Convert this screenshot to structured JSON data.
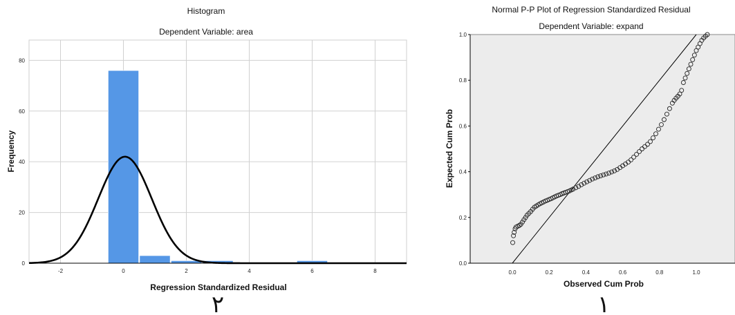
{
  "chart_data": [
    {
      "type": "bar",
      "title": "Histogram",
      "subtitle": "Dependent Variable: area",
      "xlabel": "Regression Standardized Residual",
      "ylabel": "Frequency",
      "xlim": [
        -3,
        9
      ],
      "ylim": [
        0,
        88
      ],
      "xticks": [
        -2,
        0,
        2,
        4,
        6,
        8
      ],
      "yticks": [
        0,
        20,
        40,
        60,
        80
      ],
      "bar_color": "#5597e6",
      "grid": true,
      "bins": [
        {
          "x0": -0.5,
          "x1": 0.5,
          "count": 76
        },
        {
          "x0": 0.5,
          "x1": 1.5,
          "count": 3
        },
        {
          "x0": 1.5,
          "x1": 2.5,
          "count": 1
        },
        {
          "x0": 2.5,
          "x1": 3.5,
          "count": 1
        },
        {
          "x0": 3.5,
          "x1": 4.5,
          "count": 0
        },
        {
          "x0": 4.5,
          "x1": 5.5,
          "count": 0
        },
        {
          "x0": 5.5,
          "x1": 6.5,
          "count": 1
        }
      ],
      "normal_curve": {
        "mean": 0.05,
        "sd": 0.85,
        "peak": 42
      },
      "footer_label": "٢"
    },
    {
      "type": "scatter",
      "title": "Normal P-P Plot of Regression Standardized Residual",
      "subtitle": "Dependent Variable: expand",
      "xlabel": "Observed Cum Prob",
      "ylabel": "Expected Cum Prob",
      "xlim": [
        0,
        1.2
      ],
      "ylim": [
        0,
        1.0
      ],
      "xticks": [
        "0.0",
        "0.2",
        "0.4",
        "0.6",
        "0.8",
        "1.0"
      ],
      "yticks": [
        "0.0",
        "0.2",
        "0.4",
        "0.6",
        "0.8",
        "1.0"
      ],
      "background": "#ececec",
      "reference_line": [
        [
          0,
          0
        ],
        [
          1,
          1
        ]
      ],
      "points": [
        [
          0.002,
          0.09
        ],
        [
          0.006,
          0.12
        ],
        [
          0.01,
          0.135
        ],
        [
          0.015,
          0.15
        ],
        [
          0.02,
          0.158
        ],
        [
          0.03,
          0.162
        ],
        [
          0.038,
          0.165
        ],
        [
          0.046,
          0.17
        ],
        [
          0.055,
          0.18
        ],
        [
          0.063,
          0.19
        ],
        [
          0.072,
          0.2
        ],
        [
          0.08,
          0.21
        ],
        [
          0.09,
          0.218
        ],
        [
          0.1,
          0.226
        ],
        [
          0.11,
          0.236
        ],
        [
          0.12,
          0.245
        ],
        [
          0.13,
          0.25
        ],
        [
          0.14,
          0.255
        ],
        [
          0.15,
          0.26
        ],
        [
          0.16,
          0.264
        ],
        [
          0.17,
          0.268
        ],
        [
          0.18,
          0.272
        ],
        [
          0.19,
          0.275
        ],
        [
          0.2,
          0.279
        ],
        [
          0.21,
          0.282
        ],
        [
          0.22,
          0.286
        ],
        [
          0.23,
          0.29
        ],
        [
          0.24,
          0.294
        ],
        [
          0.25,
          0.297
        ],
        [
          0.26,
          0.3
        ],
        [
          0.27,
          0.304
        ],
        [
          0.28,
          0.307
        ],
        [
          0.29,
          0.31
        ],
        [
          0.3,
          0.313
        ],
        [
          0.31,
          0.316
        ],
        [
          0.32,
          0.32
        ],
        [
          0.33,
          0.324
        ],
        [
          0.345,
          0.33
        ],
        [
          0.36,
          0.336
        ],
        [
          0.375,
          0.343
        ],
        [
          0.39,
          0.35
        ],
        [
          0.405,
          0.356
        ],
        [
          0.42,
          0.362
        ],
        [
          0.435,
          0.368
        ],
        [
          0.45,
          0.373
        ],
        [
          0.465,
          0.378
        ],
        [
          0.48,
          0.382
        ],
        [
          0.495,
          0.386
        ],
        [
          0.51,
          0.39
        ],
        [
          0.525,
          0.394
        ],
        [
          0.54,
          0.399
        ],
        [
          0.555,
          0.404
        ],
        [
          0.57,
          0.41
        ],
        [
          0.585,
          0.418
        ],
        [
          0.6,
          0.426
        ],
        [
          0.615,
          0.434
        ],
        [
          0.63,
          0.442
        ],
        [
          0.645,
          0.452
        ],
        [
          0.66,
          0.464
        ],
        [
          0.675,
          0.476
        ],
        [
          0.69,
          0.488
        ],
        [
          0.705,
          0.5
        ],
        [
          0.72,
          0.51
        ],
        [
          0.735,
          0.52
        ],
        [
          0.75,
          0.532
        ],
        [
          0.765,
          0.548
        ],
        [
          0.78,
          0.566
        ],
        [
          0.795,
          0.586
        ],
        [
          0.81,
          0.606
        ],
        [
          0.825,
          0.628
        ],
        [
          0.84,
          0.652
        ],
        [
          0.855,
          0.676
        ],
        [
          0.87,
          0.7
        ],
        [
          0.88,
          0.712
        ],
        [
          0.89,
          0.722
        ],
        [
          0.9,
          0.73
        ],
        [
          0.91,
          0.74
        ],
        [
          0.92,
          0.756
        ],
        [
          0.93,
          0.79
        ],
        [
          0.94,
          0.81
        ],
        [
          0.95,
          0.83
        ],
        [
          0.96,
          0.85
        ],
        [
          0.97,
          0.87
        ],
        [
          0.98,
          0.89
        ],
        [
          0.99,
          0.91
        ],
        [
          1.0,
          0.93
        ],
        [
          1.01,
          0.945
        ],
        [
          1.02,
          0.96
        ],
        [
          1.03,
          0.975
        ],
        [
          1.04,
          0.985
        ],
        [
          1.05,
          0.993
        ],
        [
          1.06,
          1.0
        ]
      ],
      "footer_label": "١"
    }
  ]
}
